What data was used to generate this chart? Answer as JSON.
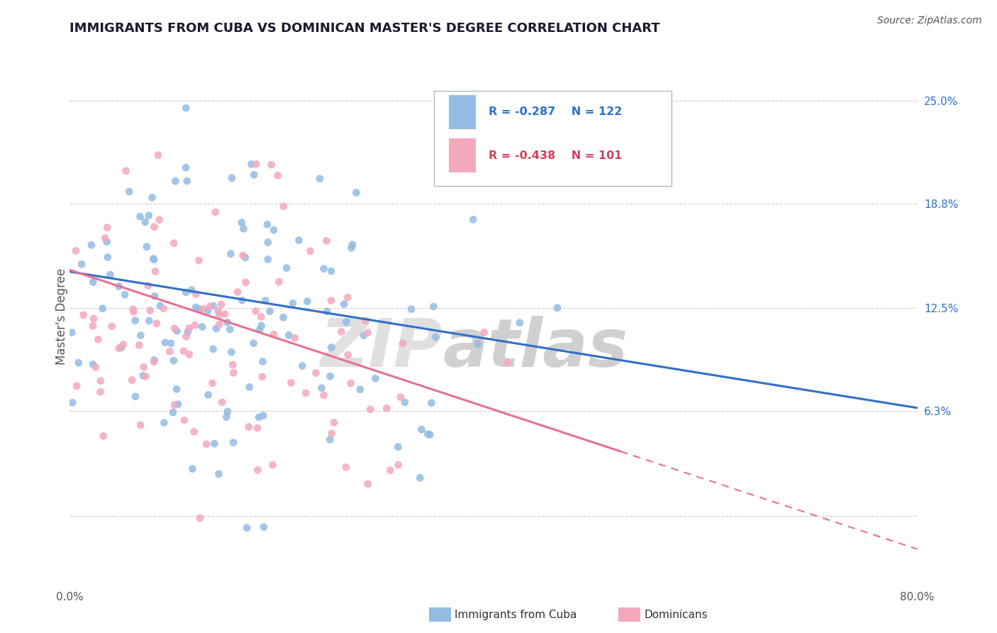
{
  "title": "IMMIGRANTS FROM CUBA VS DOMINICAN MASTER'S DEGREE CORRELATION CHART",
  "source": "Source: ZipAtlas.com",
  "ylabel": "Master's Degree",
  "xlim": [
    0.0,
    0.8
  ],
  "ylim": [
    -0.04,
    0.28
  ],
  "cuba_color": "#92bce4",
  "dominican_color": "#f4a8bc",
  "cuba_line_color": "#3070c8",
  "dominican_line_color": "#e87090",
  "legend_cuba_r": "-0.287",
  "legend_cuba_n": "122",
  "legend_dom_r": "-0.438",
  "legend_dom_n": "101",
  "ytick_positions": [
    0.0,
    0.063,
    0.125,
    0.188,
    0.25
  ],
  "yticklabels_right": [
    "",
    "6.3%",
    "12.5%",
    "18.8%",
    "25.0%"
  ],
  "xtick_positions": [
    0.0,
    0.2,
    0.4,
    0.6,
    0.8
  ],
  "xticklabels": [
    "0.0%",
    "",
    "",
    "",
    "80.0%"
  ],
  "title_fontsize": 13,
  "axis_fontsize": 11,
  "source_fontsize": 10
}
